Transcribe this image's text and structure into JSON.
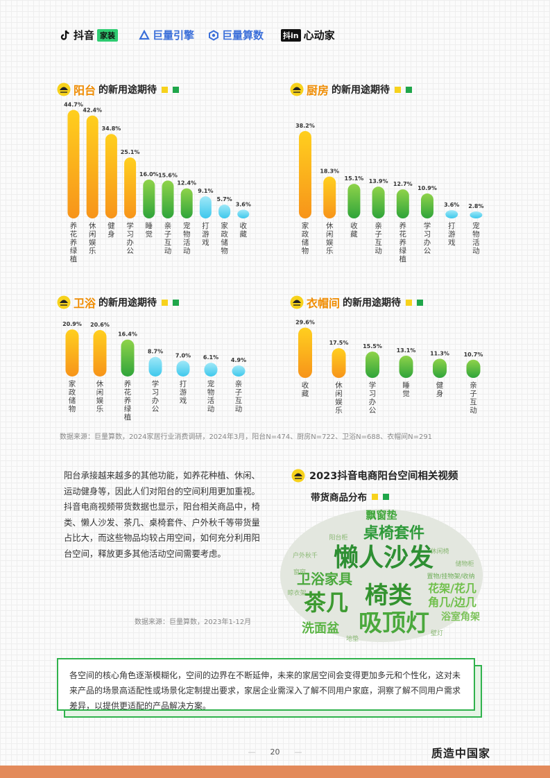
{
  "header": {
    "logos": [
      {
        "name": "抖音",
        "badge": "家装"
      },
      {
        "name": "巨量引擎"
      },
      {
        "name": "巨量算数"
      },
      {
        "box": "抖in",
        "name": "心动家"
      }
    ]
  },
  "colors": {
    "orange": "#f8a21a",
    "green": "#4bb83a",
    "cyan": "#5fd3ef",
    "accent_title": "#f08c00",
    "legend_yellow": "#f7d21c",
    "legend_green": "#1fa64a",
    "callout_border": "#2fb24c",
    "footer_band": "#e38a5a"
  },
  "chart_data": [
    {
      "id": "balcony",
      "type": "bar",
      "title_highlight": "阳台",
      "title_rest": "的新用途期待",
      "categories": [
        "养花养绿植",
        "休闲娱乐",
        "健身",
        "学习办公",
        "睡觉",
        "亲子互动",
        "宠物活动",
        "打游戏",
        "家政储物",
        "收藏"
      ],
      "values": [
        44.7,
        42.4,
        34.8,
        25.1,
        16.0,
        15.6,
        12.4,
        9.1,
        5.7,
        3.6
      ],
      "value_labels": [
        "44.7%",
        "42.4%",
        "34.8%",
        "25.1%",
        "16.0%",
        "15.6%",
        "12.4%",
        "9.1%",
        "5.7%",
        "3.6%"
      ],
      "bar_colors": [
        "orange",
        "orange",
        "orange",
        "orange",
        "green",
        "green",
        "green",
        "cyan",
        "cyan",
        "cyan"
      ],
      "unit": "%"
    },
    {
      "id": "kitchen",
      "type": "bar",
      "title_highlight": "厨房",
      "title_rest": "的新用途期待",
      "categories": [
        "家政储物",
        "休闲娱乐",
        "收藏",
        "亲子互动",
        "养花养绿植",
        "学习办公",
        "打游戏",
        "宠物活动"
      ],
      "values": [
        38.2,
        18.3,
        15.1,
        13.9,
        12.7,
        10.9,
        3.6,
        2.8
      ],
      "value_labels": [
        "38.2%",
        "18.3%",
        "15.1%",
        "13.9%",
        "12.7%",
        "10.9%",
        "3.6%",
        "2.8%"
      ],
      "bar_colors": [
        "orange",
        "orange",
        "green",
        "green",
        "green",
        "green",
        "cyan",
        "cyan"
      ],
      "unit": "%"
    },
    {
      "id": "bathroom",
      "type": "bar",
      "title_highlight": "卫浴",
      "title_rest": "的新用途期待",
      "categories": [
        "家政储物",
        "休闲娱乐",
        "养花养绿植",
        "学习办公",
        "打游戏",
        "宠物活动",
        "亲子互动"
      ],
      "values": [
        20.9,
        20.6,
        16.4,
        8.7,
        7.0,
        6.1,
        4.9
      ],
      "value_labels": [
        "20.9%",
        "20.6%",
        "16.4%",
        "8.7%",
        "7.0%",
        "6.1%",
        "4.9%"
      ],
      "bar_colors": [
        "orange",
        "orange",
        "green",
        "cyan",
        "cyan",
        "cyan",
        "cyan"
      ],
      "unit": "%"
    },
    {
      "id": "cloakroom",
      "type": "bar",
      "title_highlight": "衣帽间",
      "title_rest": "的新用途期待",
      "categories": [
        "收藏",
        "休闲娱乐",
        "学习办公",
        "睡觉",
        "健身",
        "亲子互动"
      ],
      "values": [
        29.6,
        17.5,
        15.5,
        13.1,
        11.3,
        10.7
      ],
      "value_labels": [
        "29.6%",
        "17.5%",
        "15.5%",
        "13.1%",
        "11.3%",
        "10.7%"
      ],
      "bar_colors": [
        "orange",
        "orange",
        "green",
        "green",
        "green",
        "green"
      ],
      "unit": "%"
    }
  ],
  "charts_source": "数据来源：巨量算数，2024家居行业消费调研，2024年3月，阳台N=474、厨房N=722、卫浴N=688、衣帽间N=291",
  "paragraph": "阳台承接越来越多的其他功能，如养花种植、休闲、运动健身等，因此人们对阳台的空间利用更加重视。抖音电商视频带货数据也显示，阳台相关商品中，椅类、懒人沙发、茶几、桌椅套件、户外秋千等带货量占比大，而这些物品均较占用空间，如何充分利用阳台空间，释放更多其他活动空间需要考虑。",
  "paragraph_source": "数据来源：巨量算数，2023年1-12月",
  "wordcloud": {
    "title_line1": "2023抖音电商阳台空间相关视频",
    "title_line2": "带货商品分布",
    "words": [
      "懒人沙发",
      "茶几",
      "椅类",
      "吸顶灯",
      "桌椅套件",
      "卫浴家具",
      "飘窗垫",
      "花架/花几",
      "角几/边几",
      "洗面盆",
      "浴室角架",
      "置物/挂物架/收纳",
      "阳台柜",
      "户外秋千",
      "休闲椅",
      "晾衣架",
      "储物柜",
      "地垫",
      "壁灯",
      "窗帘"
    ]
  },
  "callout": "各空间的核心角色逐渐模糊化，空间的边界在不断延伸，未来的家居空间会变得更加多元和个性化，这对未来产品的场景高适配性或场景化定制提出要求，家居企业需深入了解不同用户家庭，洞察了解不同用户需求差异，以提供更适配的产品解决方案。",
  "footer": {
    "page_number": "20",
    "logo": "质造中国家"
  }
}
